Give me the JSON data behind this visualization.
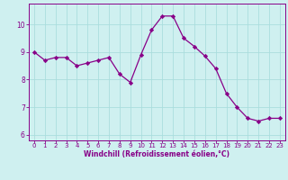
{
  "x": [
    0,
    1,
    2,
    3,
    4,
    5,
    6,
    7,
    8,
    9,
    10,
    11,
    12,
    13,
    14,
    15,
    16,
    17,
    18,
    19,
    20,
    21,
    22,
    23
  ],
  "y": [
    9.0,
    8.7,
    8.8,
    8.8,
    8.5,
    8.6,
    8.7,
    8.8,
    8.2,
    7.9,
    8.9,
    9.8,
    10.3,
    10.3,
    9.5,
    9.2,
    8.85,
    8.4,
    7.5,
    7.0,
    6.6,
    6.5,
    6.6,
    6.6
  ],
  "line_color": "#880088",
  "marker": "D",
  "marker_size": 2.2,
  "bg_color": "#cff0f0",
  "grid_color": "#aadddd",
  "xlabel": "Windchill (Refroidissement éolien,°C)",
  "xlabel_color": "#880088",
  "tick_color": "#880088",
  "spine_color": "#880088",
  "ylim": [
    5.8,
    10.75
  ],
  "xlim": [
    -0.5,
    23.5
  ],
  "yticks": [
    6,
    7,
    8,
    9,
    10
  ],
  "xticks": [
    0,
    1,
    2,
    3,
    4,
    5,
    6,
    7,
    8,
    9,
    10,
    11,
    12,
    13,
    14,
    15,
    16,
    17,
    18,
    19,
    20,
    21,
    22,
    23
  ],
  "tick_fontsize": 5.0,
  "ytick_fontsize": 5.5,
  "xlabel_fontsize": 5.5
}
